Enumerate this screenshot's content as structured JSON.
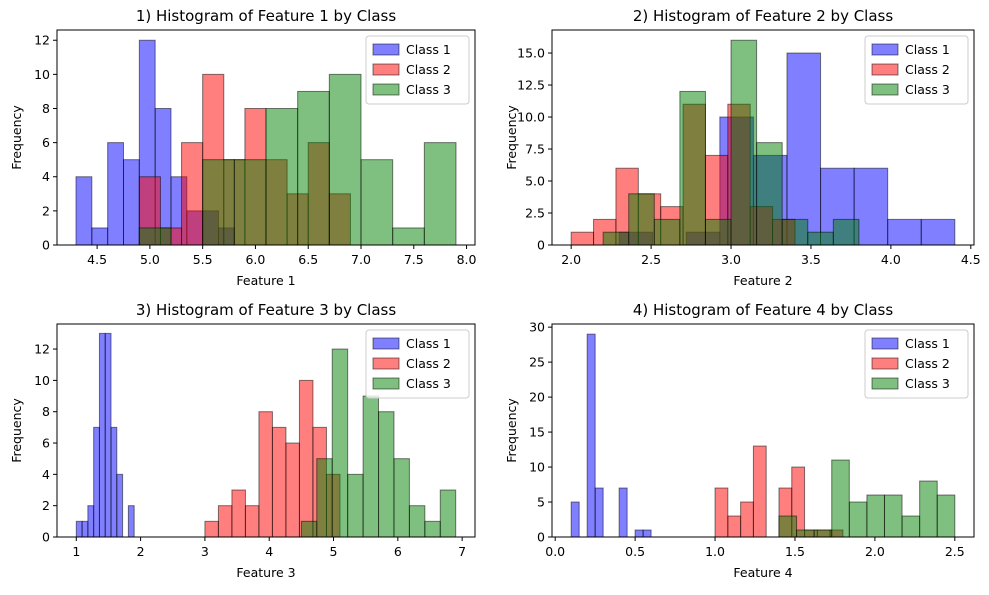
{
  "chart_data": [
    {
      "type": "histogram",
      "title": "1) Histogram of Feature 1 by Class",
      "xlabel": "Feature 1",
      "ylabel": "Frequency",
      "xlim": [
        4.12,
        8.08
      ],
      "ylim": [
        0,
        12.6
      ],
      "xticks": [
        4.5,
        5.0,
        5.5,
        6.0,
        6.5,
        7.0,
        7.5,
        8.0
      ],
      "xtick_labels": [
        "4.5",
        "5.0",
        "5.5",
        "6.0",
        "6.5",
        "7.0",
        "7.5",
        "8.0"
      ],
      "yticks": [
        0,
        2,
        4,
        6,
        8,
        10,
        12
      ],
      "ytick_labels": [
        "0",
        "2",
        "4",
        "6",
        "8",
        "10",
        "12"
      ],
      "legend": "top-right",
      "series": [
        {
          "name": "Class 1",
          "color": "#0000ff",
          "bins": [
            [
              4.3,
              4.45,
              4
            ],
            [
              4.45,
              4.6,
              1
            ],
            [
              4.6,
              4.75,
              6
            ],
            [
              4.75,
              4.9,
              5
            ],
            [
              4.9,
              5.05,
              12
            ],
            [
              5.05,
              5.2,
              8
            ],
            [
              5.2,
              5.35,
              4
            ],
            [
              5.35,
              5.5,
              2
            ],
            [
              5.5,
              5.65,
              2
            ],
            [
              5.65,
              5.8,
              1
            ]
          ]
        },
        {
          "name": "Class 2",
          "color": "#ff0000",
          "bins": [
            [
              4.9,
              5.1,
              4
            ],
            [
              5.1,
              5.3,
              1
            ],
            [
              5.3,
              5.5,
              6
            ],
            [
              5.5,
              5.7,
              10
            ],
            [
              5.7,
              5.9,
              5
            ],
            [
              5.9,
              6.1,
              8
            ],
            [
              6.1,
              6.3,
              5
            ],
            [
              6.3,
              6.5,
              3
            ],
            [
              6.5,
              6.7,
              6
            ],
            [
              6.7,
              6.9,
              3
            ]
          ]
        },
        {
          "name": "Class 3",
          "color": "#008000",
          "bins": [
            [
              4.9,
              5.2,
              1
            ],
            [
              5.2,
              5.5,
              0
            ],
            [
              5.5,
              5.8,
              5
            ],
            [
              5.8,
              6.1,
              5
            ],
            [
              6.1,
              6.4,
              8
            ],
            [
              6.4,
              6.7,
              9
            ],
            [
              6.7,
              7.0,
              10
            ],
            [
              7.0,
              7.3,
              5
            ],
            [
              7.3,
              7.6,
              1
            ],
            [
              7.6,
              7.9,
              6
            ]
          ]
        }
      ]
    },
    {
      "type": "histogram",
      "title": "2) Histogram of Feature 2 by Class",
      "xlabel": "Feature 2",
      "ylabel": "Frequency",
      "xlim": [
        1.88,
        4.52
      ],
      "ylim": [
        0,
        16.8
      ],
      "xticks": [
        2.0,
        2.5,
        3.0,
        3.5,
        4.0,
        4.5
      ],
      "xtick_labels": [
        "2.0",
        "2.5",
        "3.0",
        "3.5",
        "4.0",
        "4.5"
      ],
      "yticks": [
        0,
        2.5,
        5,
        7.5,
        10,
        12.5,
        15
      ],
      "ytick_labels": [
        "0",
        "2.5",
        "5.0",
        "7.5",
        "10.0",
        "12.5",
        "15.0"
      ],
      "legend": "top-right",
      "series": [
        {
          "name": "Class 1",
          "color": "#0000ff",
          "bins": [
            [
              2.3,
              2.51,
              1
            ],
            [
              2.51,
              2.72,
              0
            ],
            [
              2.72,
              2.93,
              1
            ],
            [
              2.93,
              3.14,
              10
            ],
            [
              3.14,
              3.35,
              7
            ],
            [
              3.35,
              3.56,
              15
            ],
            [
              3.56,
              3.77,
              6
            ],
            [
              3.77,
              3.98,
              6
            ],
            [
              3.98,
              4.19,
              2
            ],
            [
              4.19,
              4.4,
              2
            ]
          ]
        },
        {
          "name": "Class 2",
          "color": "#ff0000",
          "bins": [
            [
              2.0,
              2.14,
              1
            ],
            [
              2.14,
              2.28,
              2
            ],
            [
              2.28,
              2.42,
              6
            ],
            [
              2.42,
              2.56,
              4
            ],
            [
              2.56,
              2.7,
              3
            ],
            [
              2.7,
              2.84,
              11
            ],
            [
              2.84,
              2.98,
              7
            ],
            [
              2.98,
              3.12,
              11
            ],
            [
              3.12,
              3.26,
              3
            ],
            [
              3.26,
              3.4,
              2
            ]
          ]
        },
        {
          "name": "Class 3",
          "color": "#008000",
          "bins": [
            [
              2.2,
              2.36,
              1
            ],
            [
              2.36,
              2.52,
              4
            ],
            [
              2.52,
              2.68,
              2
            ],
            [
              2.68,
              2.84,
              12
            ],
            [
              2.84,
              3.0,
              2
            ],
            [
              3.0,
              3.16,
              16
            ],
            [
              3.16,
              3.32,
              8
            ],
            [
              3.32,
              3.48,
              2
            ],
            [
              3.48,
              3.64,
              1
            ],
            [
              3.64,
              3.8,
              2
            ]
          ]
        }
      ]
    },
    {
      "type": "histogram",
      "title": "3) Histogram of Feature 3 by Class",
      "xlabel": "Feature 3",
      "ylabel": "Frequency",
      "xlim": [
        0.7,
        7.2
      ],
      "ylim": [
        0,
        13.6
      ],
      "xticks": [
        1,
        2,
        3,
        4,
        5,
        6,
        7
      ],
      "xtick_labels": [
        "1",
        "2",
        "3",
        "4",
        "5",
        "6",
        "7"
      ],
      "yticks": [
        0,
        2,
        4,
        6,
        8,
        10,
        12
      ],
      "ytick_labels": [
        "0",
        "2",
        "4",
        "6",
        "8",
        "10",
        "12"
      ],
      "legend": "top-right",
      "series": [
        {
          "name": "Class 1",
          "color": "#0000ff",
          "bins": [
            [
              1.0,
              1.09,
              1
            ],
            [
              1.09,
              1.18,
              1
            ],
            [
              1.18,
              1.27,
              2
            ],
            [
              1.27,
              1.36,
              7
            ],
            [
              1.36,
              1.45,
              13
            ],
            [
              1.45,
              1.54,
              13
            ],
            [
              1.54,
              1.63,
              7
            ],
            [
              1.63,
              1.72,
              4
            ],
            [
              1.72,
              1.81,
              0
            ],
            [
              1.81,
              1.9,
              2
            ]
          ]
        },
        {
          "name": "Class 2",
          "color": "#ff0000",
          "bins": [
            [
              3.0,
              3.21,
              1
            ],
            [
              3.21,
              3.42,
              2
            ],
            [
              3.42,
              3.63,
              3
            ],
            [
              3.63,
              3.84,
              2
            ],
            [
              3.84,
              4.05,
              8
            ],
            [
              4.05,
              4.26,
              7
            ],
            [
              4.26,
              4.47,
              6
            ],
            [
              4.47,
              4.68,
              10
            ],
            [
              4.68,
              4.89,
              7
            ],
            [
              4.89,
              5.1,
              4
            ]
          ]
        },
        {
          "name": "Class 3",
          "color": "#008000",
          "bins": [
            [
              4.5,
              4.74,
              1
            ],
            [
              4.74,
              4.98,
              5
            ],
            [
              4.98,
              5.22,
              12
            ],
            [
              5.22,
              5.46,
              4
            ],
            [
              5.46,
              5.7,
              9
            ],
            [
              5.7,
              5.94,
              8
            ],
            [
              5.94,
              6.18,
              5
            ],
            [
              6.18,
              6.42,
              2
            ],
            [
              6.42,
              6.66,
              1
            ],
            [
              6.66,
              6.9,
              3
            ]
          ]
        }
      ]
    },
    {
      "type": "histogram",
      "title": "4) Histogram of Feature 4 by Class",
      "xlabel": "Feature 4",
      "ylabel": "Frequency",
      "xlim": [
        -0.02,
        2.62
      ],
      "ylim": [
        0,
        30.45
      ],
      "xticks": [
        0.0,
        0.5,
        1.0,
        1.5,
        2.0,
        2.5
      ],
      "xtick_labels": [
        "0.0",
        "0.5",
        "1.0",
        "1.5",
        "2.0",
        "2.5"
      ],
      "yticks": [
        0,
        5,
        10,
        15,
        20,
        25,
        30
      ],
      "ytick_labels": [
        "0",
        "5",
        "10",
        "15",
        "20",
        "25",
        "30"
      ],
      "legend": "top-right",
      "series": [
        {
          "name": "Class 1",
          "color": "#0000ff",
          "bins": [
            [
              0.1,
              0.15,
              5
            ],
            [
              0.15,
              0.2,
              0
            ],
            [
              0.2,
              0.25,
              29
            ],
            [
              0.25,
              0.3,
              7
            ],
            [
              0.3,
              0.35,
              0
            ],
            [
              0.35,
              0.4,
              0
            ],
            [
              0.4,
              0.45,
              7
            ],
            [
              0.45,
              0.5,
              0
            ],
            [
              0.5,
              0.55,
              1
            ],
            [
              0.55,
              0.6,
              1
            ]
          ]
        },
        {
          "name": "Class 2",
          "color": "#ff0000",
          "bins": [
            [
              1.0,
              1.08,
              7
            ],
            [
              1.08,
              1.16,
              3
            ],
            [
              1.16,
              1.24,
              5
            ],
            [
              1.24,
              1.32,
              13
            ],
            [
              1.32,
              1.4,
              0
            ],
            [
              1.4,
              1.48,
              7
            ],
            [
              1.48,
              1.56,
              10
            ],
            [
              1.56,
              1.64,
              1
            ],
            [
              1.64,
              1.72,
              1
            ],
            [
              1.72,
              1.8,
              1
            ]
          ]
        },
        {
          "name": "Class 3",
          "color": "#008000",
          "bins": [
            [
              1.4,
              1.51,
              3
            ],
            [
              1.51,
              1.62,
              1
            ],
            [
              1.62,
              1.73,
              1
            ],
            [
              1.73,
              1.84,
              11
            ],
            [
              1.84,
              1.95,
              5
            ],
            [
              1.95,
              2.06,
              6
            ],
            [
              2.06,
              2.17,
              6
            ],
            [
              2.17,
              2.28,
              3
            ],
            [
              2.28,
              2.39,
              8
            ],
            [
              2.39,
              2.5,
              6
            ]
          ]
        }
      ]
    }
  ]
}
